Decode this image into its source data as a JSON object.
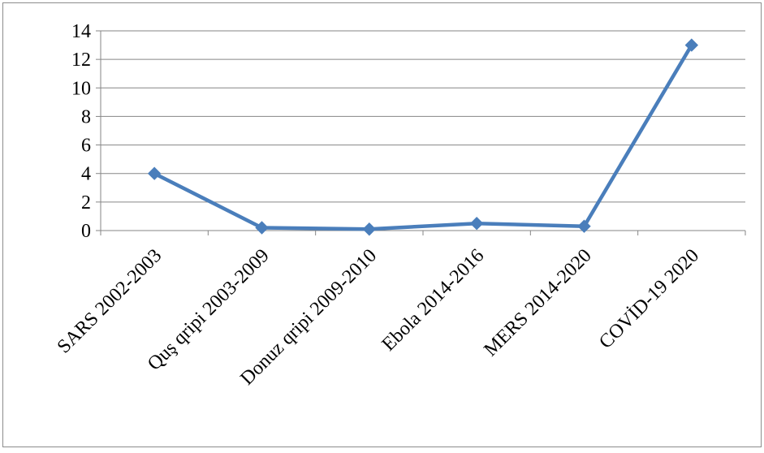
{
  "chart_data": {
    "type": "line",
    "categories": [
      "SARS 2002-2003",
      "Quş qripi 2003-2009",
      "Donuz qripi 2009-2010",
      "Ebola 2014-2016",
      "MERS 2014-2020",
      "COVİD-19 2020"
    ],
    "series": [
      {
        "values": [
          4,
          0.2,
          0.1,
          0.5,
          0.3,
          13
        ],
        "color": "#4a7ebb",
        "marker": "diamond"
      }
    ],
    "ylim": [
      0,
      14
    ],
    "yticks": [
      0,
      2,
      4,
      6,
      8,
      10,
      12,
      14
    ],
    "grid": "horizontal",
    "legend": "none",
    "title": "",
    "xlabel": "",
    "ylabel": ""
  }
}
